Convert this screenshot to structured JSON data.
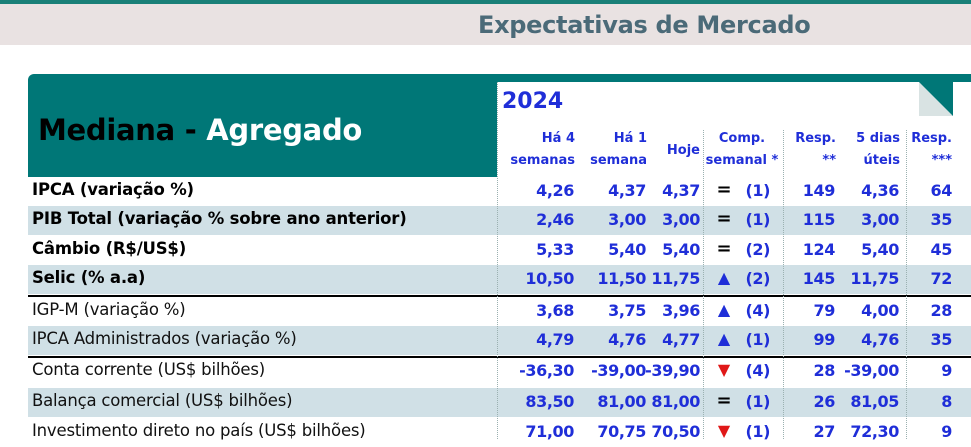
{
  "page": {
    "title": "Expectativas de Mercado"
  },
  "header": {
    "mediana": "Mediana -",
    "agregado": "Agregado",
    "year": "2024",
    "columns": {
      "ha4": [
        "Há 4",
        "semanas"
      ],
      "ha1": [
        "Há 1",
        "semana"
      ],
      "hoje": "Hoje",
      "comp": [
        "Comp.",
        "semanal *"
      ],
      "resp": [
        "Resp.",
        "**"
      ],
      "dias5": [
        "5 dias",
        "úteis"
      ],
      "resp3": [
        "Resp.",
        "***"
      ]
    }
  },
  "symbols": {
    "equal": "=",
    "up": "▲",
    "down": "▼"
  },
  "rows": [
    {
      "label": "IPCA (variação %)",
      "bold": true,
      "ha4": "4,26",
      "ha1": "4,37",
      "hoje": "4,37",
      "trend": "equal",
      "comp": "(1)",
      "resp": "149",
      "dias5": "4,36",
      "resp3": "64"
    },
    {
      "label": "PIB Total (variação % sobre ano anterior)",
      "bold": true,
      "ha4": "2,46",
      "ha1": "3,00",
      "hoje": "3,00",
      "trend": "equal",
      "comp": "(1)",
      "resp": "115",
      "dias5": "3,00",
      "resp3": "35"
    },
    {
      "label": "Câmbio (R$/US$)",
      "bold": true,
      "ha4": "5,33",
      "ha1": "5,40",
      "hoje": "5,40",
      "trend": "equal",
      "comp": "(2)",
      "resp": "124",
      "dias5": "5,40",
      "resp3": "45"
    },
    {
      "label": "Selic (% a.a)",
      "bold": true,
      "ha4": "10,50",
      "ha1": "11,50",
      "hoje": "11,75",
      "trend": "up",
      "comp": "(2)",
      "resp": "145",
      "dias5": "11,75",
      "resp3": "72"
    },
    {
      "label": "IGP-M (variação %)",
      "bold": false,
      "ha4": "3,68",
      "ha1": "3,75",
      "hoje": "3,96",
      "trend": "up",
      "comp": "(4)",
      "resp": "79",
      "dias5": "4,00",
      "resp3": "28"
    },
    {
      "label": "IPCA Administrados (variação %)",
      "bold": false,
      "ha4": "4,79",
      "ha1": "4,76",
      "hoje": "4,77",
      "trend": "up",
      "comp": "(1)",
      "resp": "99",
      "dias5": "4,76",
      "resp3": "35"
    },
    {
      "label": "Conta corrente (US$ bilhões)",
      "bold": false,
      "ha4": "-36,30",
      "ha1": "-39,00",
      "hoje": "-39,90",
      "trend": "down",
      "comp": "(4)",
      "resp": "28",
      "dias5": "-39,00",
      "resp3": "9"
    },
    {
      "label": "Balança comercial (US$ bilhões)",
      "bold": false,
      "ha4": "83,50",
      "ha1": "81,00",
      "hoje": "81,00",
      "trend": "equal",
      "comp": "(1)",
      "resp": "26",
      "dias5": "81,05",
      "resp3": "8"
    },
    {
      "label": "Investimento direto no país (US$ bilhões)",
      "bold": false,
      "ha4": "71,00",
      "ha1": "70,75",
      "hoje": "70,50",
      "trend": "down",
      "comp": "(1)",
      "resp": "27",
      "dias5": "72,30",
      "resp3": "9"
    }
  ]
}
